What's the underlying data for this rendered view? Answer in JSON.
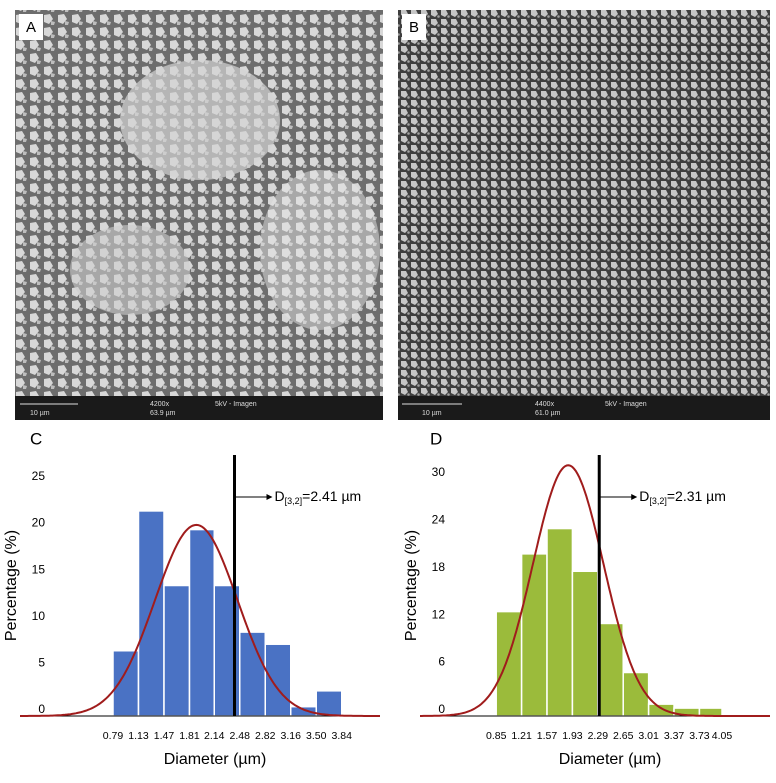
{
  "images": [
    {
      "label": "A",
      "scale_bar": "10 µm",
      "magnification": "4200x",
      "field": "63.9 µm",
      "info": "5kV - Imagen"
    },
    {
      "label": "B",
      "scale_bar": "10 µm",
      "magnification": "4400x",
      "field": "61.0 µm",
      "info": "5kV - Imagen"
    }
  ],
  "chart_data": [
    {
      "type": "histogram",
      "panel_label": "C",
      "x_label": "Diameter (µm)",
      "y_label": "Percentage (%)",
      "bins": [
        0.79,
        1.13,
        1.47,
        1.81,
        2.14,
        2.48,
        2.82,
        3.16,
        {
          "value": 3.5,
          "label": "3.50"
        },
        3.84
      ],
      "values": [
        7,
        22,
        14,
        20,
        14,
        9,
        7.7,
        1,
        2.7
      ],
      "color": "#4a72c4",
      "xlim": [
        -0.45,
        4.35
      ],
      "ylim": [
        0,
        28
      ],
      "yticks": [
        0,
        5,
        10,
        15,
        20,
        25
      ],
      "curve": {
        "mean": 1.9,
        "sd": 0.55,
        "peak": 20.5,
        "color": "#a01c1c"
      },
      "reference_line": {
        "value": 2.41,
        "label_main": "D",
        "label_sub": "[3,2]",
        "label_rest": "=2.41 µm"
      }
    },
    {
      "type": "histogram",
      "panel_label": "D",
      "x_label": "Diameter (µm)",
      "y_label": "Percentage (%)",
      "bins": [
        0.85,
        1.21,
        1.57,
        1.93,
        2.29,
        2.65,
        3.01,
        3.37,
        3.73,
        4.05
      ],
      "values": [
        13.2,
        20.5,
        23.7,
        18.3,
        11.7,
        5.5,
        1.5,
        1,
        1
      ],
      "color": "#9bbb3b",
      "xlim": [
        -0.23,
        4.73
      ],
      "ylim": [
        0,
        33
      ],
      "yticks": [
        0,
        6,
        12,
        18,
        24,
        30
      ],
      "curve": {
        "mean": 1.87,
        "sd": 0.5,
        "peak": 31.7,
        "color": "#a01c1c"
      },
      "reference_line": {
        "value": 2.31,
        "label_main": "D",
        "label_sub": "[3,2]",
        "label_rest": "=2.31 µm"
      }
    }
  ]
}
